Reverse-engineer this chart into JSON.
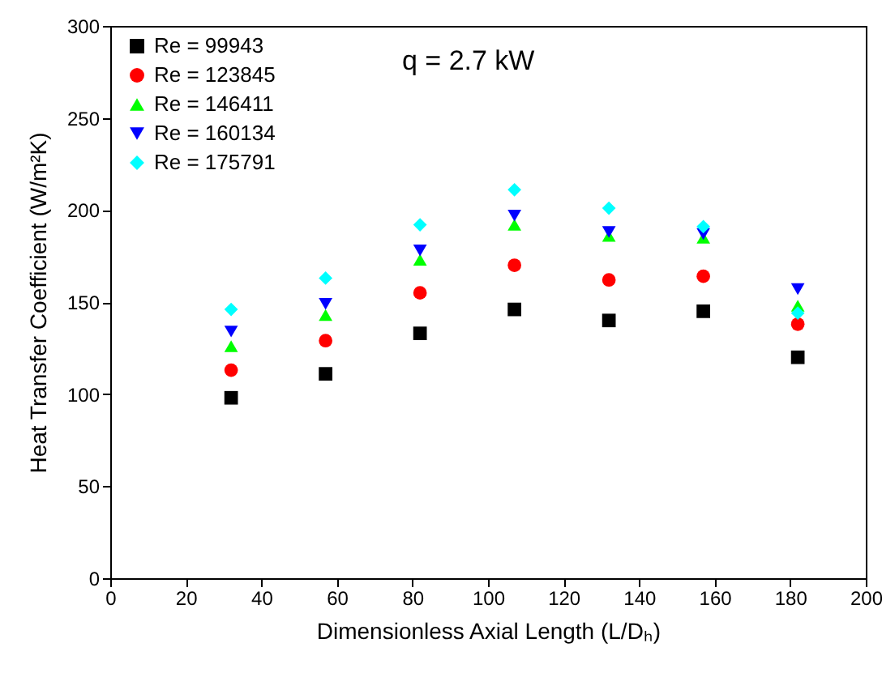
{
  "chart_data": {
    "type": "scatter",
    "xlabel": "Dimensionless Axial Length (L/Dₕ)",
    "ylabel": "Heat Transfer Coefficient (W/m²K)",
    "annotations": [
      "q = 2.7 kW"
    ],
    "x": [
      32,
      57,
      82,
      107,
      132,
      157,
      182
    ],
    "xlim": [
      0,
      200
    ],
    "xticks": [
      0,
      20,
      40,
      60,
      80,
      100,
      120,
      140,
      160,
      180,
      200
    ],
    "ylim": [
      0,
      300
    ],
    "yticks": [
      0,
      50,
      100,
      150,
      200,
      250,
      300
    ],
    "grid": false,
    "legend": "top left",
    "series": [
      {
        "name": "Re = 99943",
        "color": "#000000",
        "marker": "square",
        "values": [
          98,
          111,
          133,
          146,
          140,
          145,
          120
        ]
      },
      {
        "name": "Re = 123845",
        "color": "#ff0000",
        "marker": "circle",
        "values": [
          113,
          129,
          155,
          170,
          162,
          164,
          138
        ]
      },
      {
        "name": "Re = 146411",
        "color": "#00ff00",
        "marker": "triangle",
        "values": [
          126,
          143,
          173,
          192,
          186,
          185,
          148
        ]
      },
      {
        "name": "Re = 160134",
        "color": "#0000ff",
        "marker": "triangle-down",
        "values": [
          134,
          149,
          178,
          197,
          188,
          187,
          157
        ]
      },
      {
        "name": "Re = 175791",
        "color": "#00ffff",
        "marker": "diamond",
        "values": [
          146,
          163,
          192,
          211,
          201,
          191,
          144
        ]
      }
    ]
  }
}
